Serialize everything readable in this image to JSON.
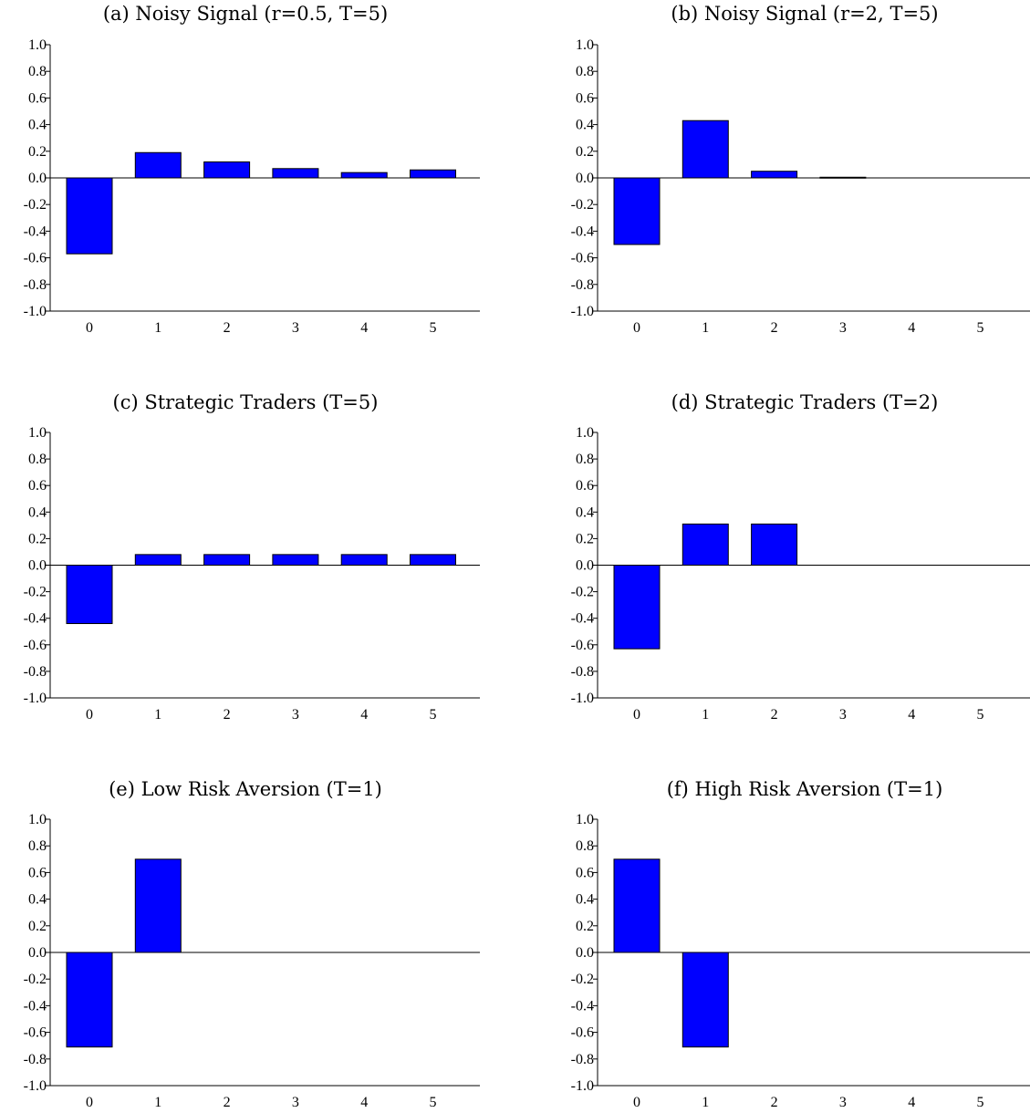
{
  "chart_data": [
    {
      "type": "bar",
      "title": "(a) Noisy Signal (r=0.5, T=5)",
      "categories": [
        "0",
        "1",
        "2",
        "3",
        "4",
        "5"
      ],
      "values": [
        -0.57,
        0.19,
        0.12,
        0.07,
        0.04,
        0.06
      ],
      "ylim": [
        -1.0,
        1.0
      ],
      "yticks": [
        "1.0",
        "0.8",
        "0.6",
        "0.4",
        "0.2",
        "0.0",
        "-0.2",
        "-0.4",
        "-0.6",
        "-0.8",
        "-1.0"
      ],
      "xlabel": "",
      "ylabel": "",
      "grid": false,
      "color": "#0000ff"
    },
    {
      "type": "bar",
      "title": "(b) Noisy Signal (r=2, T=5)",
      "categories": [
        "0",
        "1",
        "2",
        "3",
        "4",
        "5"
      ],
      "values": [
        -0.5,
        0.43,
        0.05,
        0.005,
        0.0,
        0.0
      ],
      "ylim": [
        -1.0,
        1.0
      ],
      "yticks": [
        "1.0",
        "0.8",
        "0.6",
        "0.4",
        "0.2",
        "0.0",
        "-0.2",
        "-0.4",
        "-0.6",
        "-0.8",
        "-1.0"
      ],
      "xlabel": "",
      "ylabel": "",
      "grid": false,
      "color": "#0000ff"
    },
    {
      "type": "bar",
      "title": "(c) Strategic Traders (T=5)",
      "categories": [
        "0",
        "1",
        "2",
        "3",
        "4",
        "5"
      ],
      "values": [
        -0.44,
        0.08,
        0.08,
        0.08,
        0.08,
        0.08
      ],
      "ylim": [
        -1.0,
        1.0
      ],
      "yticks": [
        "1.0",
        "0.8",
        "0.6",
        "0.4",
        "0.2",
        "0.0",
        "-0.2",
        "-0.4",
        "-0.6",
        "-0.8",
        "-1.0"
      ],
      "xlabel": "",
      "ylabel": "",
      "grid": false,
      "color": "#0000ff"
    },
    {
      "type": "bar",
      "title": "(d) Strategic Traders (T=2)",
      "categories": [
        "0",
        "1",
        "2",
        "3",
        "4",
        "5"
      ],
      "values": [
        -0.63,
        0.31,
        0.31,
        0.0,
        0.0,
        0.0
      ],
      "ylim": [
        -1.0,
        1.0
      ],
      "yticks": [
        "1.0",
        "0.8",
        "0.6",
        "0.4",
        "0.2",
        "0.0",
        "-0.2",
        "-0.4",
        "-0.6",
        "-0.8",
        "-1.0"
      ],
      "xlabel": "",
      "ylabel": "",
      "grid": false,
      "color": "#0000ff"
    },
    {
      "type": "bar",
      "title": "(e) Low Risk Aversion (T=1)",
      "categories": [
        "0",
        "1",
        "2",
        "3",
        "4",
        "5"
      ],
      "values": [
        -0.71,
        0.7,
        0.0,
        0.0,
        0.0,
        0.0
      ],
      "ylim": [
        -1.0,
        1.0
      ],
      "yticks": [
        "1.0",
        "0.8",
        "0.6",
        "0.4",
        "0.2",
        "0.0",
        "-0.2",
        "-0.4",
        "-0.6",
        "-0.8",
        "-1.0"
      ],
      "xlabel": "",
      "ylabel": "",
      "grid": false,
      "color": "#0000ff"
    },
    {
      "type": "bar",
      "title": "(f) High Risk Aversion (T=1)",
      "categories": [
        "0",
        "1",
        "2",
        "3",
        "4",
        "5"
      ],
      "values": [
        0.7,
        -0.71,
        0.0,
        0.0,
        0.0,
        0.0
      ],
      "ylim": [
        -1.0,
        1.0
      ],
      "yticks": [
        "1.0",
        "0.8",
        "0.6",
        "0.4",
        "0.2",
        "0.0",
        "-0.2",
        "-0.4",
        "-0.6",
        "-0.8",
        "-1.0"
      ],
      "xlabel": "",
      "ylabel": "",
      "grid": false,
      "color": "#0000ff"
    }
  ]
}
